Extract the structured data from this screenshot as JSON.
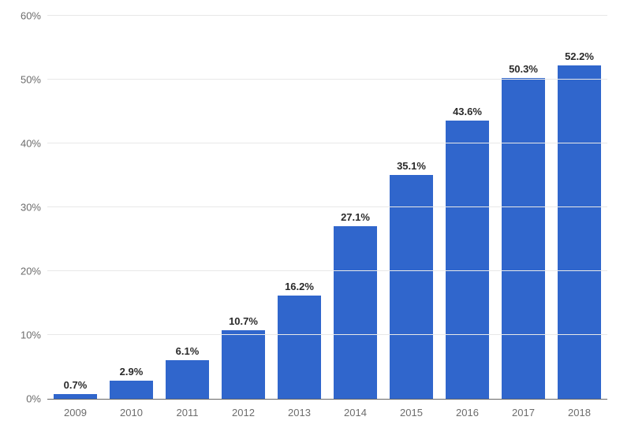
{
  "chart": {
    "type": "bar",
    "background_color": "#ffffff",
    "grid_color": "#e8e8e8",
    "axis_color": "#666666",
    "tick_label_color": "#6c6c6c",
    "value_label_color": "#2a2a2a",
    "tick_fontsize": 13,
    "value_fontsize": 13,
    "bar_color": "#3066cc",
    "bar_width_ratio": 0.78,
    "ylim": [
      0,
      60
    ],
    "ytick_step": 10,
    "y_suffix": "%",
    "y_ticks": [
      0,
      10,
      20,
      30,
      40,
      50,
      60
    ],
    "categories": [
      "2009",
      "2010",
      "2011",
      "2012",
      "2013",
      "2014",
      "2015",
      "2016",
      "2017",
      "2018"
    ],
    "values": [
      0.7,
      2.9,
      6.1,
      10.7,
      16.2,
      27.1,
      35.1,
      43.6,
      50.3,
      52.2
    ],
    "value_labels": [
      "0.7%",
      "2.9%",
      "6.1%",
      "10.7%",
      "16.2%",
      "27.1%",
      "35.1%",
      "43.6%",
      "50.3%",
      "52.2%"
    ]
  }
}
